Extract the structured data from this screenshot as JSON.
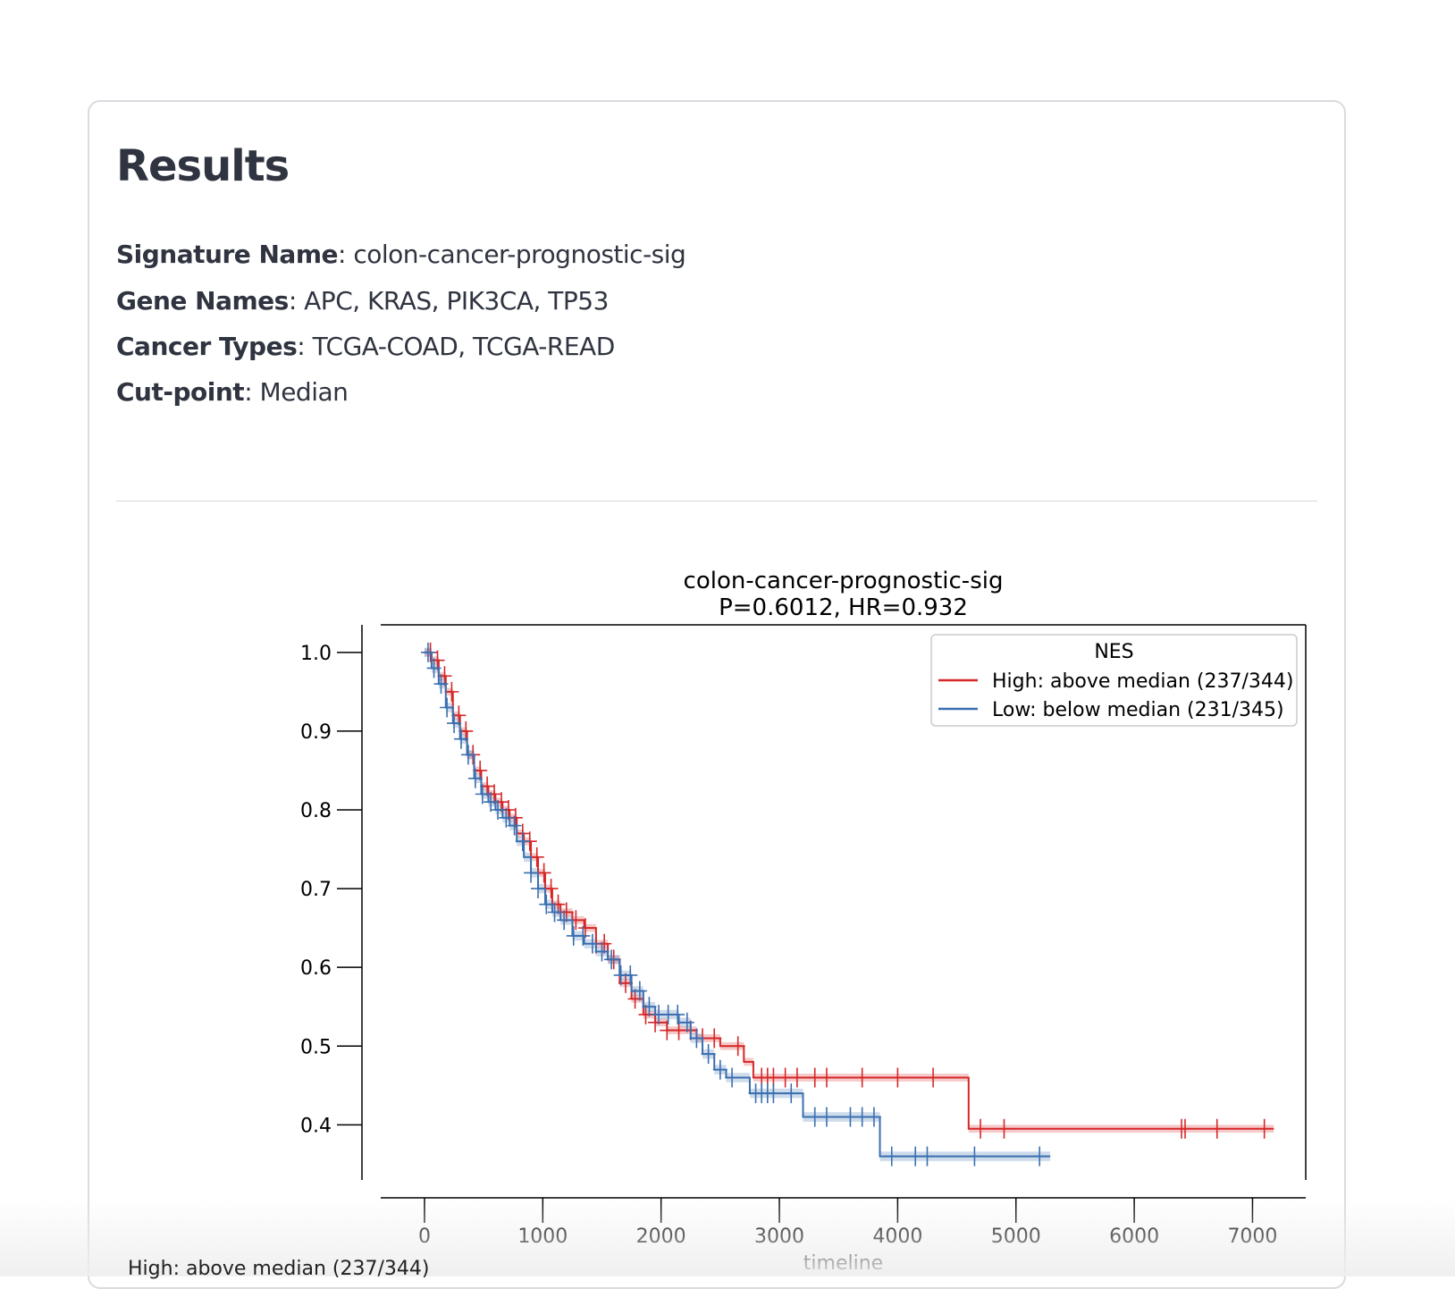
{
  "page": {
    "title": "Results",
    "signature": {
      "label": "Signature Name",
      "value": "colon-cancer-prognostic-sig"
    },
    "genes": {
      "label": "Gene Names",
      "value": "APC, KRAS, PIK3CA, TP53"
    },
    "cancers": {
      "label": "Cancer Types",
      "value": "TCGA-COAD, TCGA-READ"
    },
    "cutpoint": {
      "label": "Cut-point",
      "value": "Median"
    },
    "footer_label": "High: above median (237/344)"
  },
  "chart_data": {
    "type": "line",
    "title": "colon-cancer-prognostic-sig",
    "subtitle": "P=0.6012, HR=0.932",
    "xlabel": "timeline",
    "ylabel": "",
    "xlim": [
      -370,
      7450
    ],
    "ylim": [
      0.33,
      1.035
    ],
    "xticks": [
      0,
      1000,
      2000,
      3000,
      4000,
      5000,
      6000,
      7000
    ],
    "xtick_labels": [
      "0",
      "1000",
      "2000",
      "3000",
      "4000",
      "5000",
      "6000",
      "7000"
    ],
    "yticks": [
      0.4,
      0.5,
      0.6,
      0.7,
      0.8,
      0.9,
      1.0
    ],
    "ytick_labels": [
      "0.4",
      "0.5",
      "0.6",
      "0.7",
      "0.8",
      "0.9",
      "1.0"
    ],
    "legend": {
      "title": "NES",
      "position": "top-right"
    },
    "series": [
      {
        "name": "High: above median (237/344)",
        "color": "#d62728",
        "x": [
          0,
          60,
          120,
          180,
          240,
          300,
          360,
          420,
          480,
          540,
          600,
          660,
          720,
          780,
          840,
          900,
          960,
          1020,
          1080,
          1150,
          1250,
          1350,
          1450,
          1550,
          1650,
          1750,
          1850,
          1950,
          2050,
          2150,
          2300,
          2500,
          2700,
          2780,
          4600,
          7180
        ],
        "y": [
          1.0,
          0.99,
          0.97,
          0.95,
          0.92,
          0.9,
          0.87,
          0.85,
          0.83,
          0.82,
          0.81,
          0.8,
          0.79,
          0.77,
          0.76,
          0.74,
          0.72,
          0.7,
          0.68,
          0.67,
          0.66,
          0.65,
          0.63,
          0.61,
          0.58,
          0.56,
          0.54,
          0.53,
          0.52,
          0.52,
          0.51,
          0.5,
          0.48,
          0.46,
          0.395,
          0.395
        ],
        "censor_x": [
          50,
          110,
          170,
          230,
          290,
          350,
          410,
          470,
          530,
          590,
          650,
          710,
          770,
          830,
          890,
          950,
          1010,
          1070,
          1130,
          1200,
          1280,
          1360,
          1450,
          1520,
          1600,
          1700,
          1780,
          1870,
          1950,
          2050,
          2150,
          2250,
          2350,
          2450,
          2650,
          2850,
          2900,
          2950,
          3050,
          3150,
          3300,
          3400,
          3700,
          4000,
          4300,
          4700,
          4900,
          6400,
          6430,
          6700,
          7100
        ],
        "ci": 0.005
      },
      {
        "name": "Low: below median (231/345)",
        "color": "#3a6fb0",
        "x": [
          0,
          60,
          120,
          180,
          240,
          300,
          360,
          420,
          480,
          540,
          600,
          660,
          720,
          780,
          840,
          900,
          960,
          1020,
          1080,
          1150,
          1250,
          1350,
          1450,
          1550,
          1650,
          1750,
          1850,
          1950,
          2050,
          2150,
          2250,
          2350,
          2450,
          2550,
          2750,
          3000,
          3200,
          3500,
          3850,
          5290
        ],
        "y": [
          1.0,
          0.98,
          0.96,
          0.93,
          0.91,
          0.89,
          0.87,
          0.84,
          0.82,
          0.81,
          0.8,
          0.79,
          0.78,
          0.76,
          0.74,
          0.72,
          0.7,
          0.68,
          0.67,
          0.66,
          0.64,
          0.63,
          0.62,
          0.61,
          0.59,
          0.57,
          0.55,
          0.54,
          0.54,
          0.53,
          0.51,
          0.49,
          0.47,
          0.46,
          0.44,
          0.44,
          0.41,
          0.41,
          0.36,
          0.36
        ],
        "censor_x": [
          30,
          80,
          140,
          190,
          250,
          310,
          370,
          430,
          490,
          560,
          620,
          690,
          760,
          830,
          900,
          960,
          1030,
          1100,
          1180,
          1260,
          1340,
          1420,
          1500,
          1580,
          1660,
          1740,
          1820,
          1900,
          1980,
          2060,
          2140,
          2220,
          2300,
          2400,
          2500,
          2600,
          2800,
          2850,
          2900,
          2950,
          3100,
          3300,
          3400,
          3600,
          3700,
          3800,
          3950,
          4150,
          4250,
          4650,
          5200
        ],
        "ci": 0.006
      }
    ]
  }
}
